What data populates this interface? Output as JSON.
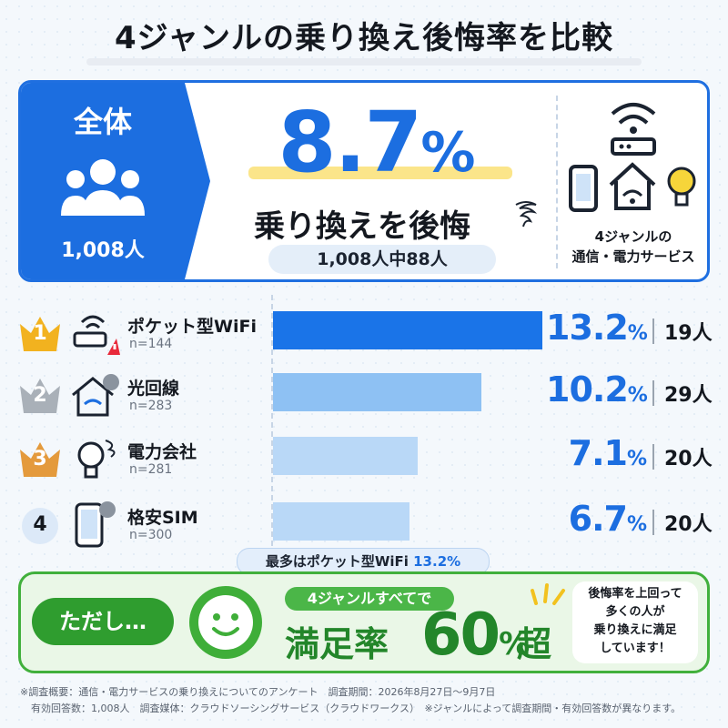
{
  "title": "4ジャンルの乗り換え後悔率を比較",
  "summary": {
    "all_label": "全体",
    "all_count": "1,008人",
    "rate_value": "8.7",
    "rate_unit": "%",
    "regret_text": "乗り換えを後悔",
    "sub_text": "1,008人中88人",
    "genre_caption_line1": "4ジャンルの",
    "genre_caption_line2": "通信・電力サービス"
  },
  "ranking": [
    {
      "rank": "1",
      "name": "ポケット型WiFi",
      "n": "n=144",
      "pct": "13.2",
      "unit": "%",
      "count": "19人",
      "icon": "pocket-wifi-warning-icon",
      "badge": "gold-crown-icon"
    },
    {
      "rank": "2",
      "name": "光回線",
      "n": "n=283",
      "pct": "10.2",
      "unit": "%",
      "count": "29人",
      "icon": "home-wifi-sad-icon",
      "badge": "silver-crown-icon"
    },
    {
      "rank": "3",
      "name": "電力会社",
      "n": "n=281",
      "pct": "7.1",
      "unit": "%",
      "count": "20人",
      "icon": "lightbulb-icon",
      "badge": "bronze-crown-icon"
    },
    {
      "rank": "4",
      "name": "格安SIM",
      "n": "n=300",
      "pct": "6.7",
      "unit": "%",
      "count": "20人",
      "icon": "smartphone-sad-icon",
      "badge": "plain-circle-icon"
    }
  ],
  "top_note": {
    "prefix": "最多はポケット型WiFi ",
    "highlight": "13.2%"
  },
  "footer": {
    "tadashi": "ただし…",
    "pill": "4ジャンルすべてで",
    "sat_label": "満足率",
    "sat_value": "60",
    "sat_unit": "%",
    "sat_suffix": "超",
    "bubble_line1": "後悔率を上回って",
    "bubble_line2": "多くの人が",
    "bubble_line3": "乗り換えに満足",
    "bubble_line4": "しています！"
  },
  "footnotes": {
    "line1": "※調査概要：通信・電力サービスの乗り換えについてのアンケート　調査期間：2026年8月27日～9月7日",
    "line2": "有効回答数：1,008人　調査媒体：クラウドソーシングサービス（クラウドワークス）　※ジャンルによって調査期間・有効回答数が異なります。"
  },
  "colors": {
    "accent": "#1c6ee0",
    "bar_top": "#1a74e8",
    "bar_other": "#8ec1f3",
    "bar_light": "#b9d8f7",
    "green": "#41b03c",
    "gold": "#f2b21f",
    "silver": "#a9b0b8",
    "bronze": "#e49a3c"
  },
  "chart_data": {
    "type": "bar",
    "title": "4ジャンルの乗り換え後悔率を比較",
    "categories": [
      "ポケット型WiFi",
      "光回線",
      "電力会社",
      "格安SIM"
    ],
    "series": [
      {
        "values": [
          13.2,
          10.2,
          7.1,
          6.7
        ]
      }
    ],
    "counts": [
      19,
      29,
      20,
      20
    ],
    "sample_sizes": [
      144,
      283,
      281,
      300
    ],
    "orientation": "horizontal",
    "xlim": [
      0,
      13.2
    ],
    "grid": false,
    "overall": {
      "value": 8.7,
      "respondents": 1008,
      "regretted": 88
    },
    "satisfaction_threshold": 60
  }
}
